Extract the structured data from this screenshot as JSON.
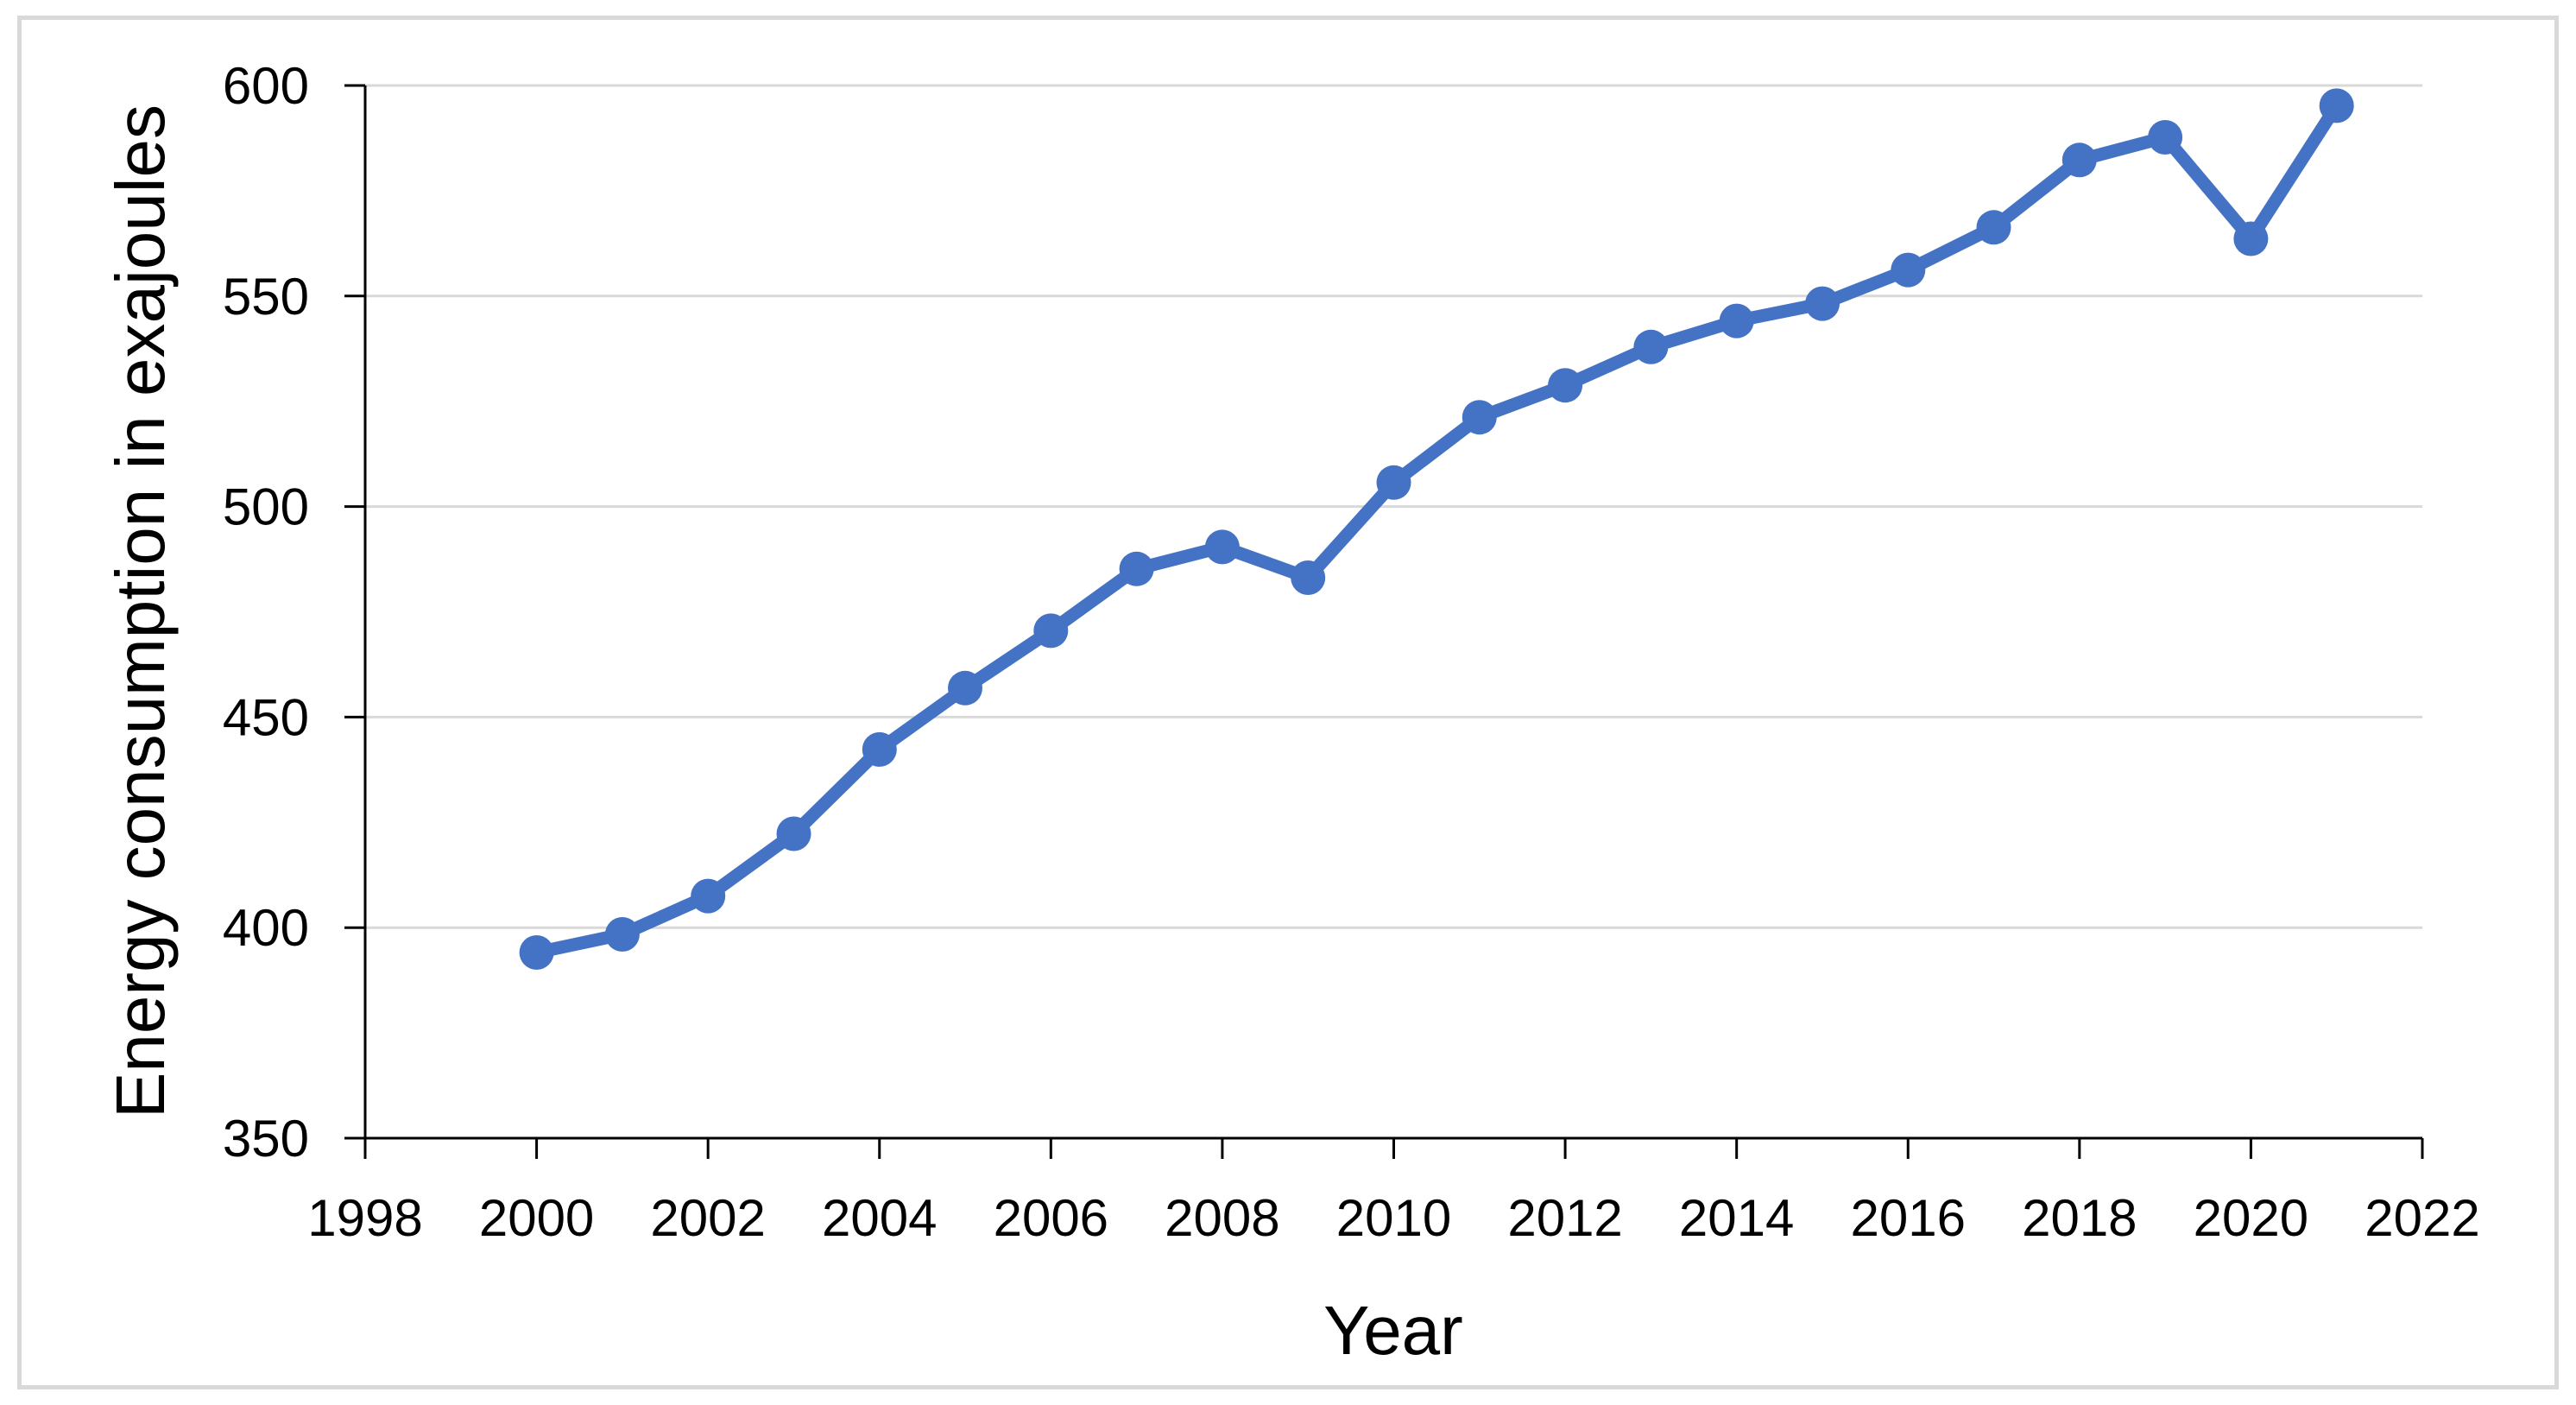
{
  "chart_data": {
    "type": "line",
    "title": "",
    "xlabel": "Year",
    "ylabel": "Energy consumption in exajoules",
    "x": [
      2000,
      2001,
      2002,
      2003,
      2004,
      2005,
      2006,
      2007,
      2008,
      2009,
      2010,
      2011,
      2012,
      2013,
      2014,
      2015,
      2016,
      2017,
      2018,
      2019,
      2020,
      2021
    ],
    "series": [
      {
        "name": "Energy consumption in exajoules",
        "values": [
          394.1,
          398.4,
          407.5,
          422.3,
          442.3,
          456.9,
          470.5,
          485.2,
          490.4,
          483.1,
          505.7,
          521.2,
          528.8,
          537.9,
          544.1,
          548.2,
          556.2,
          566.3,
          582.3,
          587.7,
          563.6,
          595.2
        ]
      }
    ],
    "xlim": [
      1998,
      2022
    ],
    "ylim": [
      350,
      600
    ],
    "x_ticks": [
      1998,
      2000,
      2002,
      2004,
      2006,
      2008,
      2010,
      2012,
      2014,
      2016,
      2018,
      2020,
      2022
    ],
    "y_ticks": [
      350,
      400,
      450,
      500,
      550,
      600
    ],
    "grid": "horizontal-only",
    "legend": "none",
    "colors": {
      "line": "#4472C4",
      "marker": "#4472C4",
      "gridline": "#d9d9d9",
      "axis": "#000000",
      "text": "#000000",
      "frame_border": "#d9d9d9",
      "background": "#ffffff"
    }
  }
}
